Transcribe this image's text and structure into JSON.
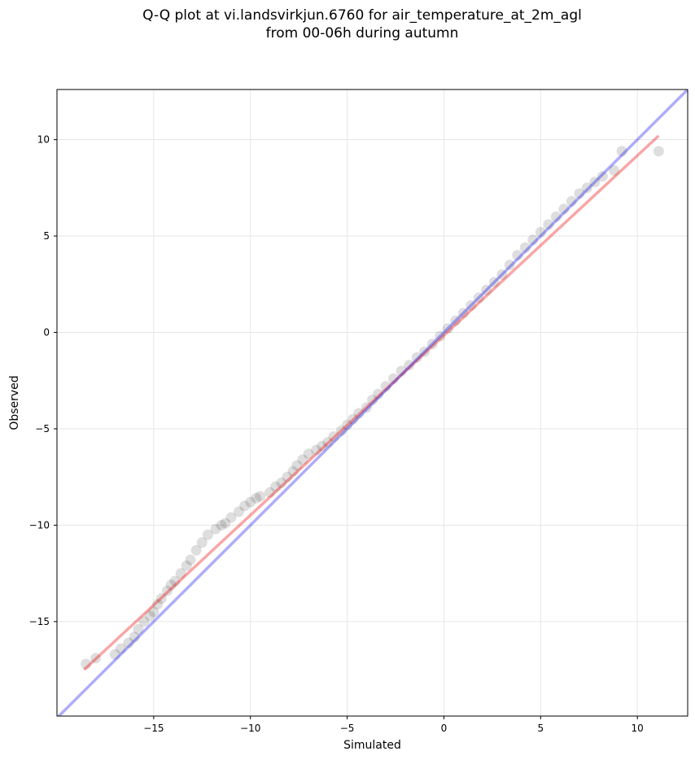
{
  "chart_data": {
    "type": "scatter",
    "title_line1": "Q-Q plot at vi.landsvirkjun.6760 for air_temperature_at_2m_agl",
    "title_line2": "from 00-06h during autumn",
    "xlabel": "Simulated",
    "ylabel": "Observed",
    "xlim": [
      -20.0,
      12.6
    ],
    "ylim": [
      -19.9,
      12.6
    ],
    "xticks": [
      -15,
      -10,
      -5,
      0,
      5,
      10
    ],
    "yticks": [
      -15,
      -10,
      -5,
      0,
      5,
      10
    ],
    "xtick_labels": [
      "−15",
      "−10",
      "−5",
      "0",
      "5",
      "10"
    ],
    "ytick_labels": [
      "−15",
      "−10",
      "−5",
      "0",
      "5",
      "10"
    ],
    "grid": true,
    "identity_line": {
      "color": "#0000ee",
      "x": [
        -20.0,
        12.6
      ],
      "y": [
        -20.0,
        12.6
      ]
    },
    "fit_line": {
      "color": "#ee0000",
      "x": [
        -18.6,
        11.1
      ],
      "y": [
        -17.5,
        10.2
      ]
    },
    "points_color": "#000000",
    "quantiles": {
      "x": [
        -18.5,
        -18.0,
        -17.0,
        -16.7,
        -16.3,
        -16.0,
        -15.8,
        -15.5,
        -15.2,
        -15.0,
        -14.8,
        -14.6,
        -14.3,
        -14.1,
        -13.9,
        -13.6,
        -13.3,
        -13.1,
        -12.8,
        -12.5,
        -12.2,
        -11.8,
        -11.5,
        -11.3,
        -11.0,
        -10.6,
        -10.3,
        -10.0,
        -9.7,
        -9.5,
        -9.0,
        -8.7,
        -8.4,
        -8.1,
        -7.8,
        -7.6,
        -7.3,
        -7.0,
        -6.6,
        -6.3,
        -6.0,
        -5.7,
        -5.3,
        -5.0,
        -4.7,
        -4.4,
        -4.0,
        -3.7,
        -3.4,
        -3.0,
        -2.6,
        -2.2,
        -1.8,
        -1.4,
        -1.0,
        -0.6,
        -0.2,
        0.2,
        0.6,
        1.0,
        1.4,
        1.8,
        2.2,
        2.6,
        3.0,
        3.4,
        3.8,
        4.2,
        4.6,
        5.0,
        5.4,
        5.8,
        6.2,
        6.6,
        7.0,
        7.4,
        7.8,
        8.2,
        8.8,
        9.2,
        11.1
      ],
      "y": [
        -17.2,
        -16.9,
        -16.7,
        -16.4,
        -16.1,
        -15.8,
        -15.4,
        -15.0,
        -14.7,
        -14.5,
        -14.1,
        -13.8,
        -13.4,
        -13.1,
        -12.9,
        -12.5,
        -12.1,
        -11.8,
        -11.3,
        -10.9,
        -10.5,
        -10.2,
        -10.0,
        -9.9,
        -9.6,
        -9.3,
        -9.0,
        -8.8,
        -8.6,
        -8.5,
        -8.3,
        -8.0,
        -7.8,
        -7.5,
        -7.2,
        -6.9,
        -6.6,
        -6.3,
        -6.1,
        -5.9,
        -5.7,
        -5.4,
        -5.1,
        -4.8,
        -4.5,
        -4.2,
        -3.9,
        -3.5,
        -3.2,
        -2.8,
        -2.4,
        -2.0,
        -1.7,
        -1.3,
        -1.0,
        -0.6,
        -0.2,
        0.2,
        0.6,
        1.0,
        1.4,
        1.8,
        2.2,
        2.6,
        3.0,
        3.5,
        4.0,
        4.4,
        4.8,
        5.2,
        5.6,
        6.0,
        6.4,
        6.8,
        7.2,
        7.5,
        7.8,
        8.1,
        8.4,
        9.4,
        9.4
      ]
    }
  }
}
